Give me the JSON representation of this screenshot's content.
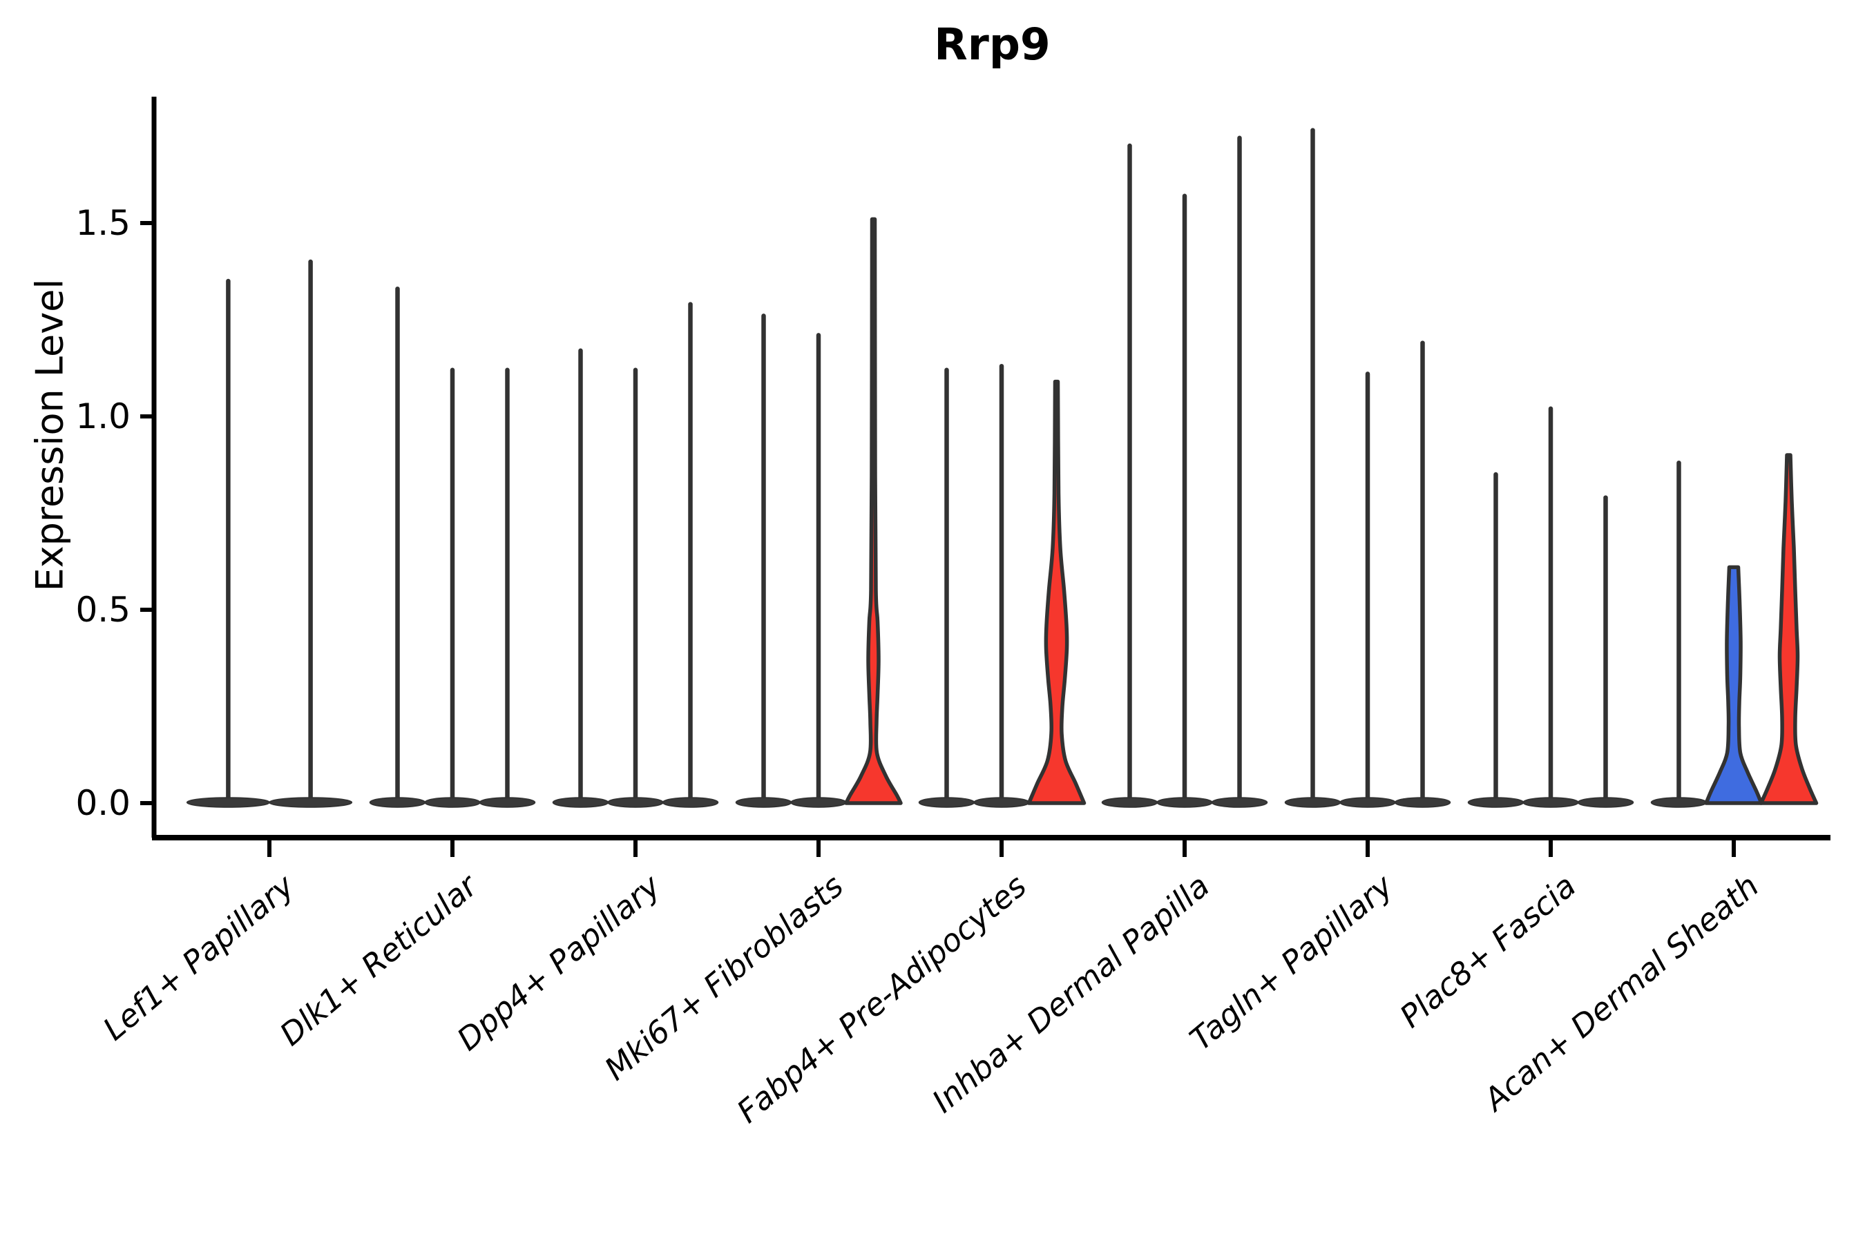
{
  "title": "Rrp9",
  "chart_data": {
    "type": "violin",
    "title": "Rrp9",
    "xlabel": "",
    "ylabel": "Expression Level",
    "yticks": [
      "0.0",
      "0.5",
      "1.0",
      "1.5"
    ],
    "ytick_values": [
      0.0,
      0.5,
      1.0,
      1.5
    ],
    "ylim": [
      0.0,
      1.83
    ],
    "grid": false,
    "legend": "none",
    "colors": {
      "red": "#f6372d",
      "blue": "#3f6ce0",
      "outline": "#323232",
      "base_fill": "#3a3a3a",
      "axis": "#000000"
    },
    "categories": [
      {
        "label": "Lef1+ Papillary",
        "violins": [
          {
            "top": 1.35,
            "fill": "white"
          },
          {
            "top": 1.4,
            "fill": "white"
          }
        ]
      },
      {
        "label": "Dlk1+ Reticular",
        "violins": [
          {
            "top": 1.33,
            "fill": "white"
          },
          {
            "top": 1.12,
            "fill": "white"
          },
          {
            "top": 1.12,
            "fill": "white"
          }
        ]
      },
      {
        "label": "Dpp4+ Papillary",
        "violins": [
          {
            "top": 1.17,
            "fill": "white"
          },
          {
            "top": 1.12,
            "fill": "white"
          },
          {
            "top": 1.29,
            "fill": "white"
          }
        ]
      },
      {
        "label": "Mki67+ Fibroblasts",
        "violins": [
          {
            "top": 1.26,
            "fill": "white"
          },
          {
            "top": 1.21,
            "fill": "white"
          },
          {
            "top": 1.51,
            "fill": "red",
            "profile": [
              [
                1.51,
                2
              ],
              [
                0.85,
                2.5
              ],
              [
                0.55,
                3.5
              ],
              [
                0.47,
                6
              ],
              [
                0.37,
                7.5
              ],
              [
                0.28,
                6
              ],
              [
                0.21,
                4.5
              ],
              [
                0.13,
                5
              ],
              [
                0.07,
                18
              ],
              [
                0.02,
                34
              ],
              [
                0.0,
                39.5
              ]
            ]
          }
        ]
      },
      {
        "label": "Fabp4+ Pre-Adipocytes",
        "violins": [
          {
            "top": 1.12,
            "fill": "white"
          },
          {
            "top": 1.13,
            "fill": "white"
          },
          {
            "top": 1.09,
            "fill": "red",
            "profile": [
              [
                1.09,
                2
              ],
              [
                0.8,
                3
              ],
              [
                0.66,
                5.5
              ],
              [
                0.55,
                11
              ],
              [
                0.46,
                14.5
              ],
              [
                0.4,
                15
              ],
              [
                0.32,
                12
              ],
              [
                0.25,
                8.5
              ],
              [
                0.18,
                7.5
              ],
              [
                0.11,
                13
              ],
              [
                0.05,
                28
              ],
              [
                0.0,
                40
              ]
            ]
          }
        ]
      },
      {
        "label": "Inhba+ Dermal Papilla",
        "violins": [
          {
            "top": 1.7,
            "fill": "white"
          },
          {
            "top": 1.57,
            "fill": "white"
          },
          {
            "top": 1.72,
            "fill": "white"
          }
        ]
      },
      {
        "label": "Tagln+ Papillary",
        "violins": [
          {
            "top": 1.74,
            "fill": "white"
          },
          {
            "top": 1.11,
            "fill": "white"
          },
          {
            "top": 1.19,
            "fill": "white"
          }
        ]
      },
      {
        "label": "Plac8+ Fascia",
        "violins": [
          {
            "top": 0.85,
            "fill": "white"
          },
          {
            "top": 1.02,
            "fill": "white"
          },
          {
            "top": 0.79,
            "fill": "white"
          }
        ]
      },
      {
        "label": "Acan+ Dermal Sheath",
        "violins": [
          {
            "top": 0.88,
            "fill": "white"
          },
          {
            "top": 0.61,
            "fill": "blue",
            "profile": [
              [
                0.61,
                6.5
              ],
              [
                0.52,
                8.5
              ],
              [
                0.42,
                10
              ],
              [
                0.33,
                9.5
              ],
              [
                0.26,
                8
              ],
              [
                0.2,
                7.5
              ],
              [
                0.13,
                9.5
              ],
              [
                0.08,
                20
              ],
              [
                0.03,
                33
              ],
              [
                0.0,
                40
              ]
            ]
          },
          {
            "top": 0.9,
            "fill": "red",
            "profile": [
              [
                0.9,
                2.5
              ],
              [
                0.78,
                4.5
              ],
              [
                0.66,
                7.5
              ],
              [
                0.55,
                9.5
              ],
              [
                0.45,
                11.5
              ],
              [
                0.38,
                13
              ],
              [
                0.3,
                11.5
              ],
              [
                0.22,
                9.5
              ],
              [
                0.15,
                10.5
              ],
              [
                0.09,
                19
              ],
              [
                0.04,
                30
              ],
              [
                0.0,
                40
              ]
            ]
          }
        ]
      }
    ]
  }
}
